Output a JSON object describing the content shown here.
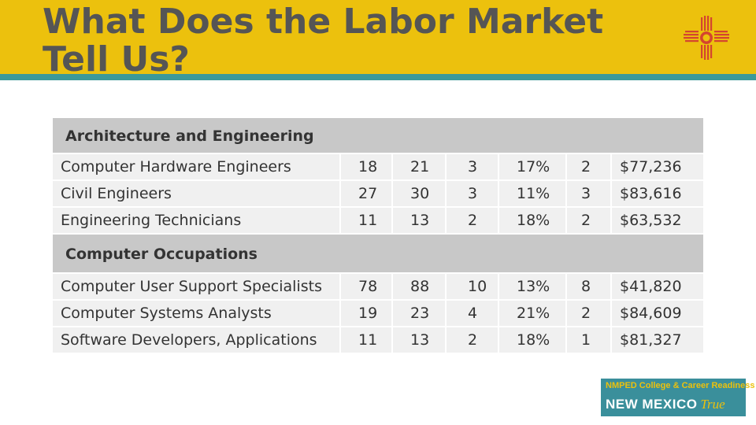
{
  "slide": {
    "title": "What Does the Labor Market Tell Us?"
  },
  "logo": {
    "icon": "zia-sun-symbol-icon",
    "color": "#d4452f"
  },
  "sections": [
    {
      "name": "Architecture and Engineering",
      "rows": [
        [
          "Computer Hardware Engineers",
          "18",
          "21",
          "3",
          "17%",
          "2",
          "$77,236"
        ],
        [
          "Civil Engineers",
          "27",
          "30",
          "3",
          "11%",
          "3",
          "$83,616"
        ],
        [
          "Engineering Technicians",
          "11",
          "13",
          "2",
          "18%",
          "2",
          "$63,532"
        ]
      ]
    },
    {
      "name": "Computer Occupations",
      "rows": [
        [
          "Computer User Support Specialists",
          "78",
          "88",
          "10",
          "13%",
          "8",
          "$41,820"
        ],
        [
          "Computer Systems Analysts",
          "19",
          "23",
          "4",
          "21%",
          "2",
          "$84,609"
        ],
        [
          "Software Developers, Applications",
          "11",
          "13",
          "2",
          "18%",
          "1",
          "$81,327"
        ]
      ]
    }
  ],
  "badge": {
    "top": "NMPED College & Career Readiness is",
    "bottom_main": "NEW MEXICO",
    "bottom_script": "True"
  },
  "colors": {
    "header": "#ecc10d",
    "rule": "#3c9999",
    "section_bg": "#c8c8c8",
    "row_bg": "#f0f0f0",
    "badge_bg": "#3a8f9b"
  }
}
